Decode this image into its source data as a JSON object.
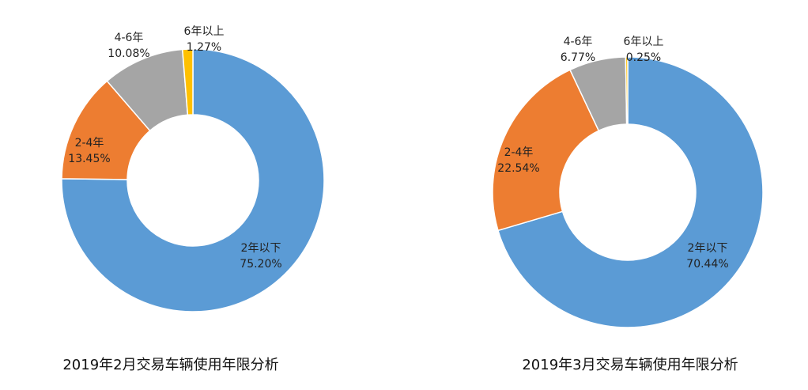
{
  "chart_data": [
    {
      "type": "pie",
      "title": "2019年2月交易车辆使用年限分析",
      "categories": [
        "2年以下",
        "2-4年",
        "4-6年",
        "6年以上"
      ],
      "values": [
        75.2,
        13.45,
        10.08,
        1.27
      ],
      "value_labels": [
        "75.20%",
        "13.45%",
        "10.08%",
        "1.27%"
      ],
      "colors": [
        "#5B9BD5",
        "#ED7D31",
        "#A5A5A5",
        "#FFC000"
      ],
      "legend": "none"
    },
    {
      "type": "pie",
      "title": "2019年3月交易车辆使用年限分析",
      "categories": [
        "2年以下",
        "2-4年",
        "4-6年",
        "6年以上"
      ],
      "values": [
        70.44,
        22.54,
        6.77,
        0.25
      ],
      "value_labels": [
        "70.44%",
        "22.54%",
        "6.77%",
        "0.25%"
      ],
      "colors": [
        "#5B9BD5",
        "#ED7D31",
        "#A5A5A5",
        "#FFC000"
      ],
      "legend": "none"
    }
  ]
}
